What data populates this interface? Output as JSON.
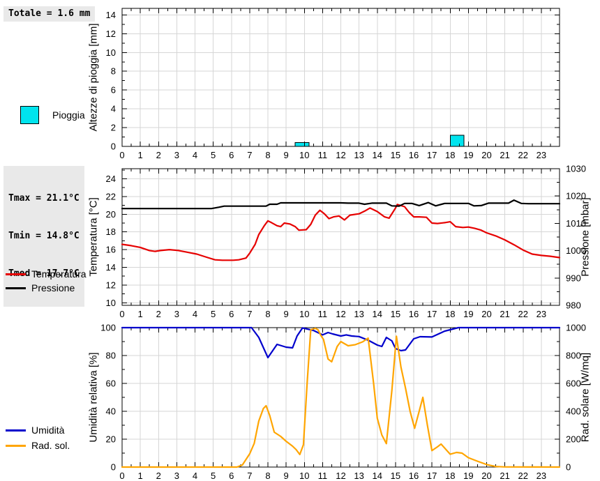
{
  "colors": {
    "rain": "#00E4EE",
    "temperature": "#E60000",
    "pressure": "#000000",
    "humidity": "#0000CC",
    "solar": "#FFA500",
    "grid": "#D6D6D6",
    "annotation_bg": "#E9E9E9"
  },
  "chart_data": [
    {
      "type": "bar",
      "name": "rain",
      "annotations": [
        "Totale = 1.6 mm"
      ],
      "left_axis": {
        "label": "Altezze di pioggia [mm]",
        "lim": [
          0,
          14.7
        ],
        "ticks": [
          0,
          2,
          4,
          6,
          8,
          10,
          12,
          14
        ],
        "minor_step": 1
      },
      "xlim": [
        0,
        24
      ],
      "x_minor_step": 0.5,
      "xtick_labels": [
        "0",
        "1",
        "2",
        "3",
        "4",
        "5",
        "6",
        "7",
        "8",
        "9",
        "10",
        "11",
        "12",
        "13",
        "14",
        "15",
        "16",
        "17",
        "18",
        "19",
        "20",
        "21",
        "22",
        "23"
      ],
      "series": [
        {
          "name": "Pioggia",
          "color": "#00E4EE",
          "axis": "left",
          "bars": [
            {
              "x": 9.5,
              "width": 0.75,
              "value": 0.4
            },
            {
              "x": 18.0,
              "width": 0.75,
              "value": 1.2
            }
          ]
        }
      ]
    },
    {
      "type": "line",
      "name": "temperature-pressure",
      "annotations": [
        "Tmax = 21.1°C",
        "Tmin = 14.8°C",
        "Tmed = 17.7°C"
      ],
      "left_axis": {
        "label": "Temperatura [°C]",
        "lim": [
          9.71,
          25.14
        ],
        "ticks": [
          10,
          12,
          14,
          16,
          18,
          20,
          22,
          24
        ],
        "minor_step": 1
      },
      "right_axis": {
        "label": "Pressione [mbar]",
        "lim": [
          980,
          1030
        ],
        "ticks": [
          980,
          990,
          1000,
          1010,
          1020,
          1030
        ],
        "minor_step": 5
      },
      "xlim": [
        0,
        24
      ],
      "x_minor_step": 0.5,
      "xtick_labels": [
        "0",
        "1",
        "2",
        "3",
        "4",
        "5",
        "6",
        "7",
        "8",
        "9",
        "10",
        "11",
        "12",
        "13",
        "14",
        "15",
        "16",
        "17",
        "18",
        "19",
        "20",
        "21",
        "22",
        "23"
      ],
      "series": [
        {
          "name": "Temperatura",
          "color": "#E60000",
          "axis": "left",
          "points": [
            [
              0,
              16.6
            ],
            [
              0.5,
              16.45
            ],
            [
              1,
              16.25
            ],
            [
              1.5,
              15.9
            ],
            [
              1.8,
              15.8
            ],
            [
              2.1,
              15.9
            ],
            [
              2.6,
              16.0
            ],
            [
              3.1,
              15.9
            ],
            [
              3.6,
              15.7
            ],
            [
              4.1,
              15.5
            ],
            [
              4.4,
              15.3
            ],
            [
              4.7,
              15.1
            ],
            [
              5.1,
              14.85
            ],
            [
              5.5,
              14.8
            ],
            [
              6.1,
              14.8
            ],
            [
              6.4,
              14.85
            ],
            [
              6.8,
              15.05
            ],
            [
              7,
              15.6
            ],
            [
              7.3,
              16.6
            ],
            [
              7.5,
              17.7
            ],
            [
              7.8,
              18.7
            ],
            [
              8,
              19.25
            ],
            [
              8.2,
              19.05
            ],
            [
              8.5,
              18.7
            ],
            [
              8.7,
              18.6
            ],
            [
              8.9,
              19.0
            ],
            [
              9.2,
              18.9
            ],
            [
              9.5,
              18.6
            ],
            [
              9.7,
              18.2
            ],
            [
              10.1,
              18.25
            ],
            [
              10.35,
              18.85
            ],
            [
              10.6,
              19.9
            ],
            [
              10.85,
              20.45
            ],
            [
              11.1,
              20.05
            ],
            [
              11.35,
              19.5
            ],
            [
              11.6,
              19.7
            ],
            [
              11.9,
              19.8
            ],
            [
              12.2,
              19.35
            ],
            [
              12.5,
              19.9
            ],
            [
              13,
              20.05
            ],
            [
              13.35,
              20.4
            ],
            [
              13.6,
              20.7
            ],
            [
              14,
              20.3
            ],
            [
              14.4,
              19.7
            ],
            [
              14.65,
              19.55
            ],
            [
              15,
              20.7
            ],
            [
              15.1,
              21.1
            ],
            [
              15.5,
              20.85
            ],
            [
              15.75,
              20.2
            ],
            [
              16,
              19.7
            ],
            [
              16.3,
              19.7
            ],
            [
              16.7,
              19.65
            ],
            [
              17,
              19.0
            ],
            [
              17.3,
              18.95
            ],
            [
              17.7,
              19.05
            ],
            [
              18,
              19.15
            ],
            [
              18.3,
              18.6
            ],
            [
              18.7,
              18.5
            ],
            [
              19,
              18.55
            ],
            [
              19.35,
              18.4
            ],
            [
              19.7,
              18.2
            ],
            [
              20,
              17.9
            ],
            [
              20.5,
              17.55
            ],
            [
              21,
              17.1
            ],
            [
              21.5,
              16.55
            ],
            [
              22,
              15.95
            ],
            [
              22.5,
              15.5
            ],
            [
              23,
              15.35
            ],
            [
              23.5,
              15.25
            ],
            [
              24,
              15.1
            ]
          ]
        },
        {
          "name": "Pressione",
          "color": "#000000",
          "axis": "right",
          "points": [
            [
              0,
              1015.4
            ],
            [
              4.9,
              1015.4
            ],
            [
              5.3,
              1015.9
            ],
            [
              5.6,
              1016.3
            ],
            [
              7.9,
              1016.3
            ],
            [
              8.1,
              1017.0
            ],
            [
              8.5,
              1017.0
            ],
            [
              8.7,
              1017.5
            ],
            [
              12,
              1017.5
            ],
            [
              12.4,
              1017.4
            ],
            [
              13,
              1017.4
            ],
            [
              13.3,
              1017.0
            ],
            [
              13.7,
              1017.4
            ],
            [
              14.5,
              1017.4
            ],
            [
              14.8,
              1016.4
            ],
            [
              15.2,
              1016.3
            ],
            [
              15.5,
              1017.3
            ],
            [
              15.9,
              1017.3
            ],
            [
              16.3,
              1016.5
            ],
            [
              16.8,
              1017.6
            ],
            [
              17.2,
              1016.4
            ],
            [
              17.7,
              1017.3
            ],
            [
              19,
              1017.3
            ],
            [
              19.3,
              1016.4
            ],
            [
              19.7,
              1016.5
            ],
            [
              20.1,
              1017.4
            ],
            [
              21.2,
              1017.4
            ],
            [
              21.5,
              1018.5
            ],
            [
              21.9,
              1017.3
            ],
            [
              22.3,
              1017.2
            ],
            [
              24,
              1017.2
            ]
          ]
        }
      ]
    },
    {
      "type": "line",
      "name": "humidity-solar",
      "annotations": [],
      "left_axis": {
        "label": "Umidità relativa [%]",
        "lim": [
          0,
          100
        ],
        "ticks": [
          0,
          20,
          40,
          60,
          80,
          100
        ],
        "minor_step": 10
      },
      "right_axis": {
        "label": "Rad. solare [W/mq]",
        "lim": [
          0,
          1000
        ],
        "ticks": [
          0,
          200,
          400,
          600,
          800,
          1000
        ],
        "minor_step": 100
      },
      "xlim": [
        0,
        24
      ],
      "x_minor_step": 0.5,
      "xtick_labels": [
        "0",
        "1",
        "2",
        "3",
        "4",
        "5",
        "6",
        "7",
        "8",
        "9",
        "10",
        "11",
        "12",
        "13",
        "14",
        "15",
        "16",
        "17",
        "18",
        "19",
        "20",
        "21",
        "22",
        "23"
      ],
      "series": [
        {
          "name": "Umidità",
          "color": "#0000CC",
          "axis": "left",
          "points": [
            [
              0,
              100
            ],
            [
              7.1,
              100
            ],
            [
              7.5,
              93
            ],
            [
              8,
              78.5
            ],
            [
              8.5,
              88
            ],
            [
              9,
              86
            ],
            [
              9.35,
              85.5
            ],
            [
              9.6,
              94
            ],
            [
              9.9,
              99.8
            ],
            [
              10.5,
              98
            ],
            [
              11,
              94.8
            ],
            [
              11.3,
              96.5
            ],
            [
              11.55,
              95.5
            ],
            [
              12,
              94
            ],
            [
              12.3,
              94.8
            ],
            [
              12.6,
              94
            ],
            [
              13,
              93.6
            ],
            [
              13.5,
              91
            ],
            [
              14,
              87.5
            ],
            [
              14.25,
              86.5
            ],
            [
              14.5,
              93
            ],
            [
              14.8,
              90.5
            ],
            [
              15,
              85
            ],
            [
              15.3,
              83.5
            ],
            [
              15.55,
              84
            ],
            [
              16,
              92
            ],
            [
              16.35,
              93.5
            ],
            [
              17,
              93.3
            ],
            [
              17.7,
              97.5
            ],
            [
              18,
              98.5
            ],
            [
              18.45,
              100
            ],
            [
              24,
              100
            ]
          ]
        },
        {
          "name": "Rad. sol.",
          "color": "#FFA500",
          "axis": "right",
          "points": [
            [
              0,
              0
            ],
            [
              6.3,
              0
            ],
            [
              6.6,
              15
            ],
            [
              7,
              95
            ],
            [
              7.25,
              170
            ],
            [
              7.5,
              330
            ],
            [
              7.75,
              420
            ],
            [
              7.9,
              440
            ],
            [
              8.1,
              370
            ],
            [
              8.35,
              250
            ],
            [
              8.7,
              220
            ],
            [
              9,
              185
            ],
            [
              9.35,
              150
            ],
            [
              9.55,
              125
            ],
            [
              9.75,
              90
            ],
            [
              9.95,
              160
            ],
            [
              10.15,
              600
            ],
            [
              10.35,
              985
            ],
            [
              10.6,
              995
            ],
            [
              10.75,
              985
            ],
            [
              10.9,
              945
            ],
            [
              11.05,
              915
            ],
            [
              11.3,
              775
            ],
            [
              11.5,
              755
            ],
            [
              11.8,
              865
            ],
            [
              12,
              900
            ],
            [
              12.4,
              870
            ],
            [
              12.8,
              878
            ],
            [
              13.2,
              898
            ],
            [
              13.5,
              925
            ],
            [
              13.8,
              600
            ],
            [
              14,
              350
            ],
            [
              14.25,
              230
            ],
            [
              14.5,
              168
            ],
            [
              14.8,
              550
            ],
            [
              15.05,
              938
            ],
            [
              15.3,
              717
            ],
            [
              15.55,
              567
            ],
            [
              15.8,
              400
            ],
            [
              16.05,
              278
            ],
            [
              16.3,
              400
            ],
            [
              16.5,
              500
            ],
            [
              16.75,
              300
            ],
            [
              17,
              118
            ],
            [
              17.3,
              145
            ],
            [
              17.5,
              165
            ],
            [
              18,
              92
            ],
            [
              18.35,
              105
            ],
            [
              18.65,
              100
            ],
            [
              19,
              67
            ],
            [
              19.5,
              42
            ],
            [
              20,
              18
            ],
            [
              20.5,
              4
            ],
            [
              21,
              1
            ],
            [
              24,
              0
            ]
          ]
        }
      ]
    }
  ]
}
